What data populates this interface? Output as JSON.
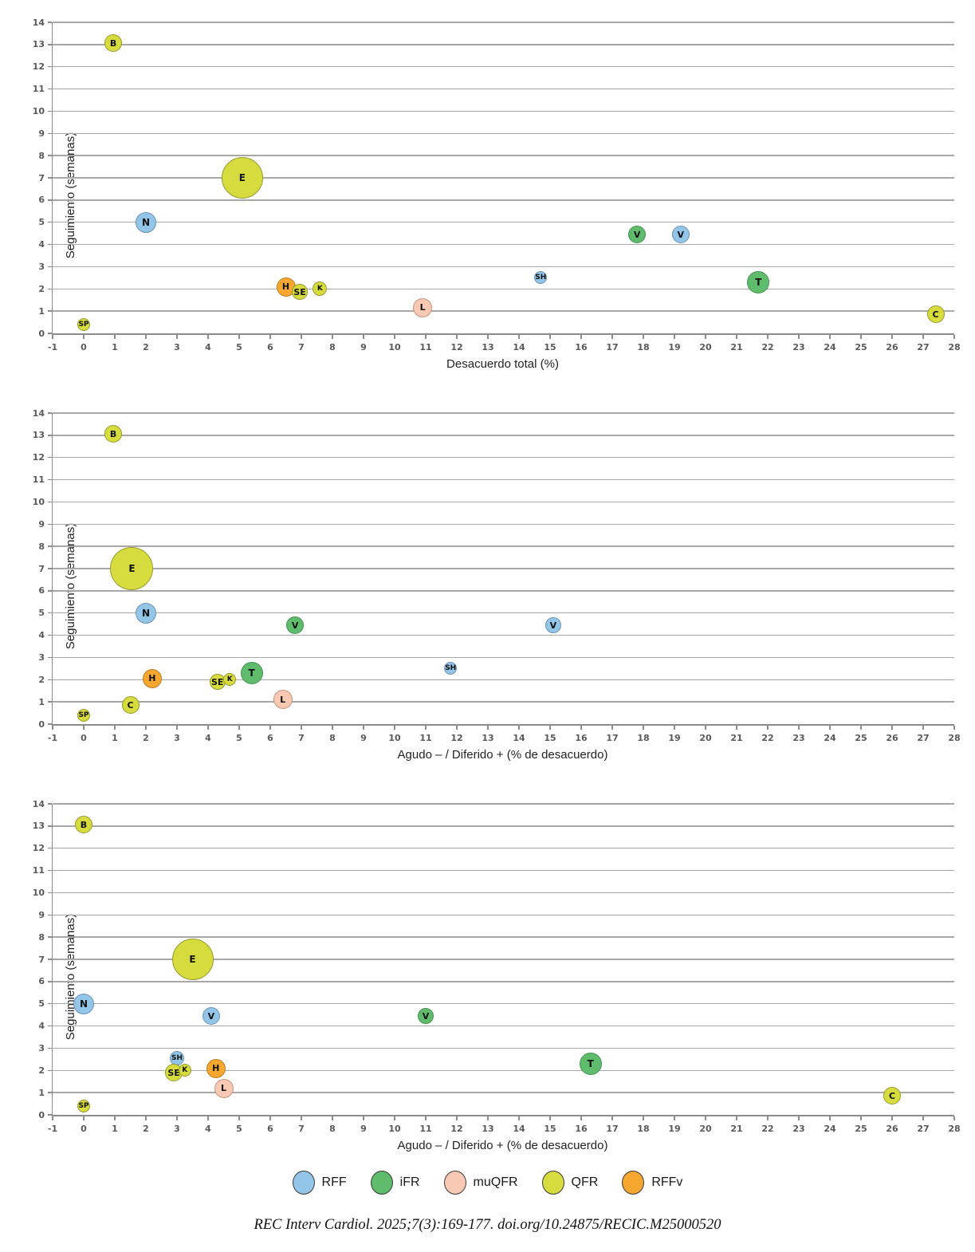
{
  "citation": "REC Interv Cardiol. 2025;7(3):169-177. doi.org/10.24875/RECIC.M25000520",
  "legend": {
    "series": [
      {
        "name": "RFF",
        "fill": "#92C5E8",
        "stroke": "#6E93B0"
      },
      {
        "name": "iFR",
        "fill": "#5FBC6C",
        "stroke": "#489054"
      },
      {
        "name": "muQFR",
        "fill": "#F9C9B4",
        "stroke": "#C59480"
      },
      {
        "name": "QFR",
        "fill": "#D7DC3E",
        "stroke": "#95992F"
      },
      {
        "name": "RFFv",
        "fill": "#F6A72F",
        "stroke": "#BC7D20"
      }
    ]
  },
  "chart_data": [
    {
      "type": "bubble",
      "title": "",
      "xlabel": "Desacuerdo total (%)",
      "ylabel": "Seguimiento (semanas)",
      "xlim": [
        -1,
        28
      ],
      "ylim": [
        0,
        14
      ],
      "xtick_step": 1,
      "ytick_step": 1,
      "grid": "horizontal",
      "legend_position": "none",
      "points": [
        {
          "label": "SP",
          "series": "QFR",
          "x": 0.0,
          "y": 0.4,
          "r": 8
        },
        {
          "label": "B",
          "series": "QFR",
          "x": 0.95,
          "y": 13.05,
          "r": 11
        },
        {
          "label": "E",
          "series": "QFR",
          "x": 5.1,
          "y": 7.0,
          "r": 26
        },
        {
          "label": "N",
          "series": "RFF",
          "x": 2.0,
          "y": 5.0,
          "r": 13
        },
        {
          "label": "H",
          "series": "RFFv",
          "x": 6.5,
          "y": 2.1,
          "r": 12
        },
        {
          "label": "SE",
          "series": "QFR",
          "x": 6.95,
          "y": 1.85,
          "r": 10
        },
        {
          "label": "K",
          "series": "QFR",
          "x": 7.6,
          "y": 2.0,
          "r": 9
        },
        {
          "label": "L",
          "series": "muQFR",
          "x": 10.9,
          "y": 1.15,
          "r": 12
        },
        {
          "label": "SH",
          "series": "RFF",
          "x": 14.7,
          "y": 2.5,
          "r": 8
        },
        {
          "label": "V",
          "series": "iFR",
          "x": 17.8,
          "y": 4.45,
          "r": 11
        },
        {
          "label": "V",
          "series": "RFF",
          "x": 19.2,
          "y": 4.45,
          "r": 11
        },
        {
          "label": "T",
          "series": "iFR",
          "x": 21.7,
          "y": 2.3,
          "r": 14
        },
        {
          "label": "C",
          "series": "QFR",
          "x": 27.4,
          "y": 0.85,
          "r": 11
        }
      ]
    },
    {
      "type": "bubble",
      "title": "",
      "xlabel": "Agudo – / Diferido + (% de desacuerdo)",
      "ylabel": "Seguimiento (semanas)",
      "xlim": [
        -1,
        28
      ],
      "ylim": [
        0,
        14
      ],
      "xtick_step": 1,
      "ytick_step": 1,
      "grid": "horizontal",
      "legend_position": "none",
      "points": [
        {
          "label": "SP",
          "series": "QFR",
          "x": 0.0,
          "y": 0.4,
          "r": 8
        },
        {
          "label": "B",
          "series": "QFR",
          "x": 0.95,
          "y": 13.05,
          "r": 11
        },
        {
          "label": "E",
          "series": "QFR",
          "x": 1.55,
          "y": 7.0,
          "r": 27
        },
        {
          "label": "N",
          "series": "RFF",
          "x": 2.0,
          "y": 5.0,
          "r": 13
        },
        {
          "label": "C",
          "series": "QFR",
          "x": 1.5,
          "y": 0.85,
          "r": 11
        },
        {
          "label": "H",
          "series": "RFFv",
          "x": 2.2,
          "y": 2.05,
          "r": 12
        },
        {
          "label": "SE",
          "series": "QFR",
          "x": 4.3,
          "y": 1.9,
          "r": 10
        },
        {
          "label": "K",
          "series": "QFR",
          "x": 4.7,
          "y": 2.0,
          "r": 8
        },
        {
          "label": "T",
          "series": "iFR",
          "x": 5.4,
          "y": 2.3,
          "r": 14
        },
        {
          "label": "L",
          "series": "muQFR",
          "x": 6.4,
          "y": 1.1,
          "r": 12
        },
        {
          "label": "V",
          "series": "iFR",
          "x": 6.8,
          "y": 4.45,
          "r": 11
        },
        {
          "label": "SH",
          "series": "RFF",
          "x": 11.8,
          "y": 2.5,
          "r": 8
        },
        {
          "label": "V",
          "series": "RFF",
          "x": 15.1,
          "y": 4.45,
          "r": 10
        }
      ]
    },
    {
      "type": "bubble",
      "title": "",
      "xlabel": "Agudo – / Diferido + (% de desacuerdo)",
      "ylabel": "Seguimiento (semanas)",
      "xlim": [
        -1,
        28
      ],
      "ylim": [
        0,
        14
      ],
      "xtick_step": 1,
      "ytick_step": 1,
      "grid": "horizontal",
      "legend_position": "none",
      "points": [
        {
          "label": "SP",
          "series": "QFR",
          "x": 0.0,
          "y": 0.4,
          "r": 8
        },
        {
          "label": "B",
          "series": "QFR",
          "x": 0.0,
          "y": 13.05,
          "r": 11
        },
        {
          "label": "N",
          "series": "RFF",
          "x": 0.0,
          "y": 5.0,
          "r": 13
        },
        {
          "label": "E",
          "series": "QFR",
          "x": 3.5,
          "y": 7.0,
          "r": 26
        },
        {
          "label": "V",
          "series": "RFF",
          "x": 4.1,
          "y": 4.45,
          "r": 11
        },
        {
          "label": "SH",
          "series": "RFF",
          "x": 3.0,
          "y": 2.55,
          "r": 9
        },
        {
          "label": "SE",
          "series": "QFR",
          "x": 2.9,
          "y": 1.9,
          "r": 11
        },
        {
          "label": "K",
          "series": "QFR",
          "x": 3.25,
          "y": 2.0,
          "r": 8
        },
        {
          "label": "H",
          "series": "RFFv",
          "x": 4.25,
          "y": 2.1,
          "r": 12
        },
        {
          "label": "L",
          "series": "muQFR",
          "x": 4.5,
          "y": 1.2,
          "r": 12
        },
        {
          "label": "V",
          "series": "iFR",
          "x": 11.0,
          "y": 4.45,
          "r": 10
        },
        {
          "label": "T",
          "series": "iFR",
          "x": 16.3,
          "y": 2.3,
          "r": 14
        },
        {
          "label": "C",
          "series": "QFR",
          "x": 26.0,
          "y": 0.85,
          "r": 11
        }
      ]
    }
  ]
}
